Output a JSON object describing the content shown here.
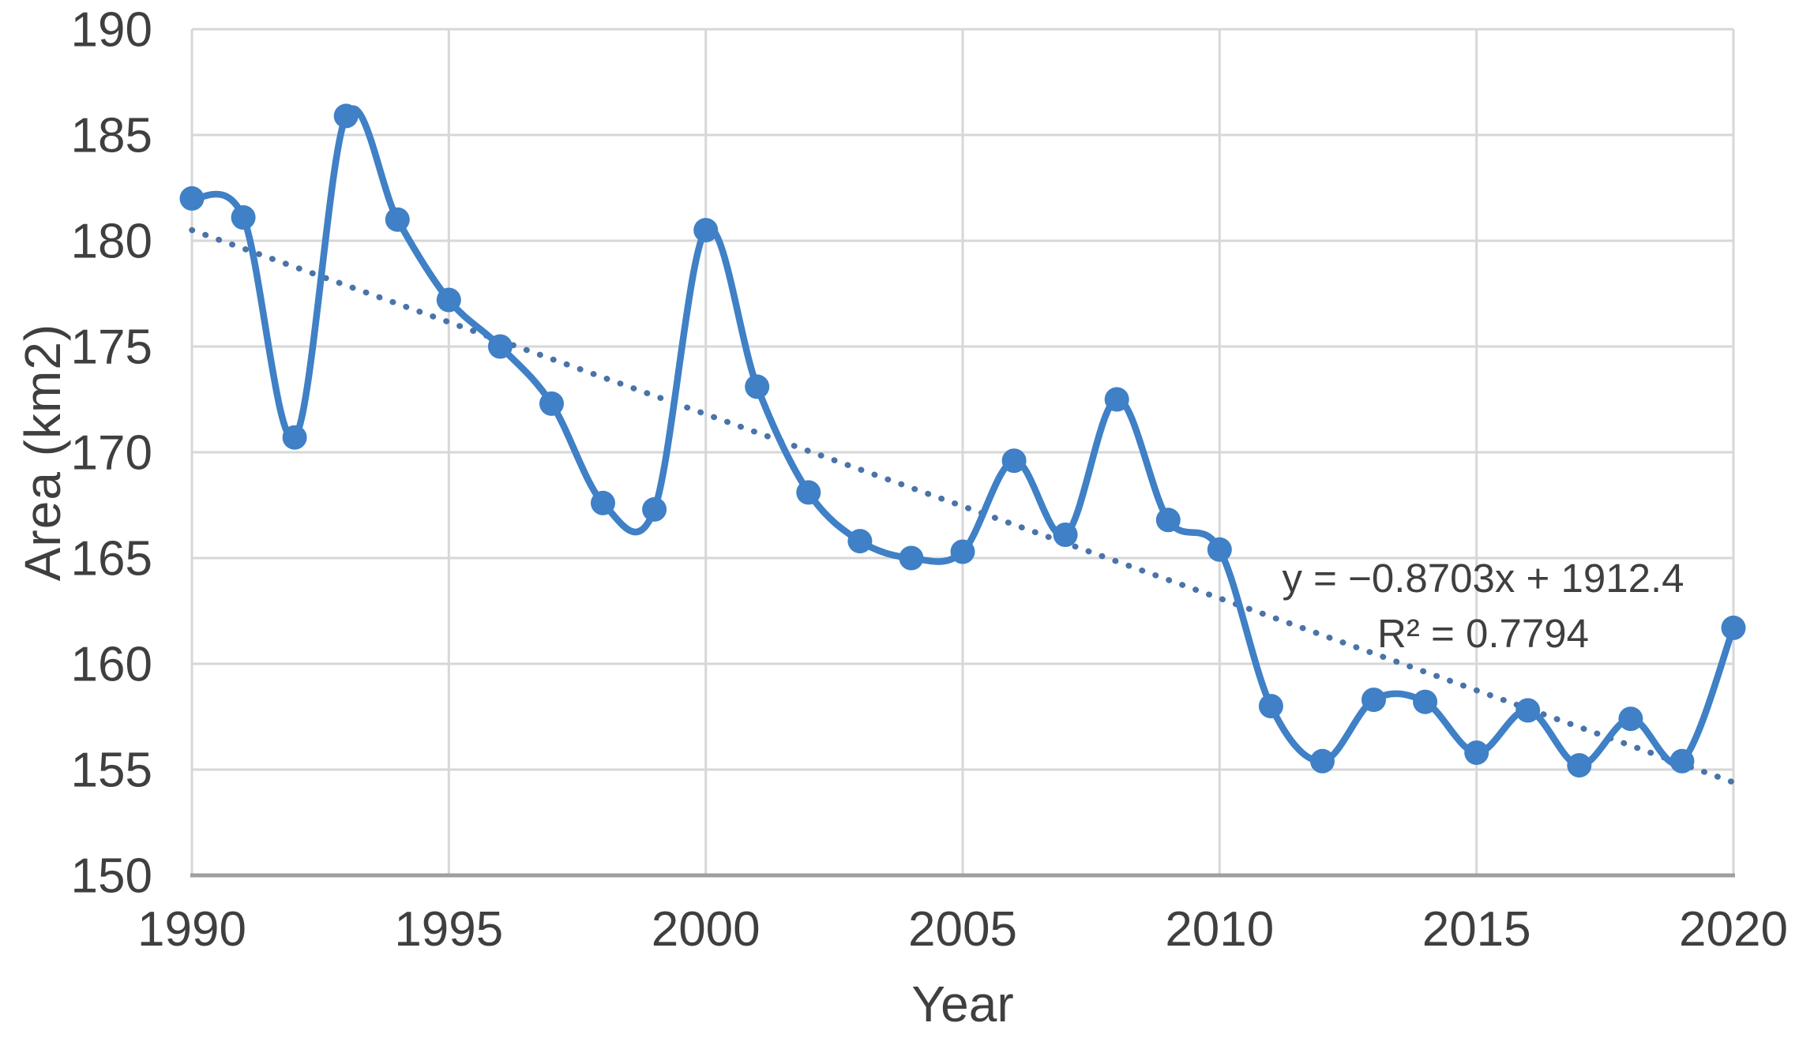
{
  "chart_data": {
    "type": "line",
    "title": "",
    "xlabel": "Year",
    "ylabel": "Area (km2)",
    "x": [
      1990,
      1991,
      1992,
      1993,
      1994,
      1995,
      1996,
      1997,
      1998,
      1999,
      2000,
      2001,
      2002,
      2003,
      2004,
      2005,
      2006,
      2007,
      2008,
      2009,
      2010,
      2011,
      2012,
      2013,
      2014,
      2015,
      2016,
      2017,
      2018,
      2019,
      2020
    ],
    "series": [
      {
        "name": "Area",
        "values": [
          182.0,
          181.1,
          170.7,
          185.9,
          181.0,
          177.2,
          175.0,
          172.3,
          167.6,
          167.3,
          180.5,
          173.1,
          168.1,
          165.8,
          165.0,
          165.3,
          169.6,
          166.1,
          172.5,
          166.8,
          165.4,
          158.0,
          155.4,
          158.3,
          158.2,
          155.8,
          157.8,
          155.2,
          157.4,
          155.4,
          161.7
        ]
      }
    ],
    "trendline": {
      "equation": "y = −0.8703x + 1912.4",
      "r2_label": "R² = 0.7794",
      "slope": -0.8703,
      "intercept": 1912.4,
      "style": "dotted"
    },
    "xlim": [
      1990,
      2020
    ],
    "ylim": [
      150,
      190
    ],
    "xticks": [
      1990,
      1995,
      2000,
      2005,
      2010,
      2015,
      2020
    ],
    "yticks": [
      150,
      155,
      160,
      165,
      170,
      175,
      180,
      185,
      190
    ],
    "grid": true,
    "legend": "none",
    "smooth": true,
    "colors": {
      "line": "#3f80c6",
      "marker": "#3f80c6",
      "trendline": "#4a73a8",
      "grid": "#d7d7d7",
      "axis": "#9e9e9e",
      "text": "#3f3f3f"
    }
  }
}
